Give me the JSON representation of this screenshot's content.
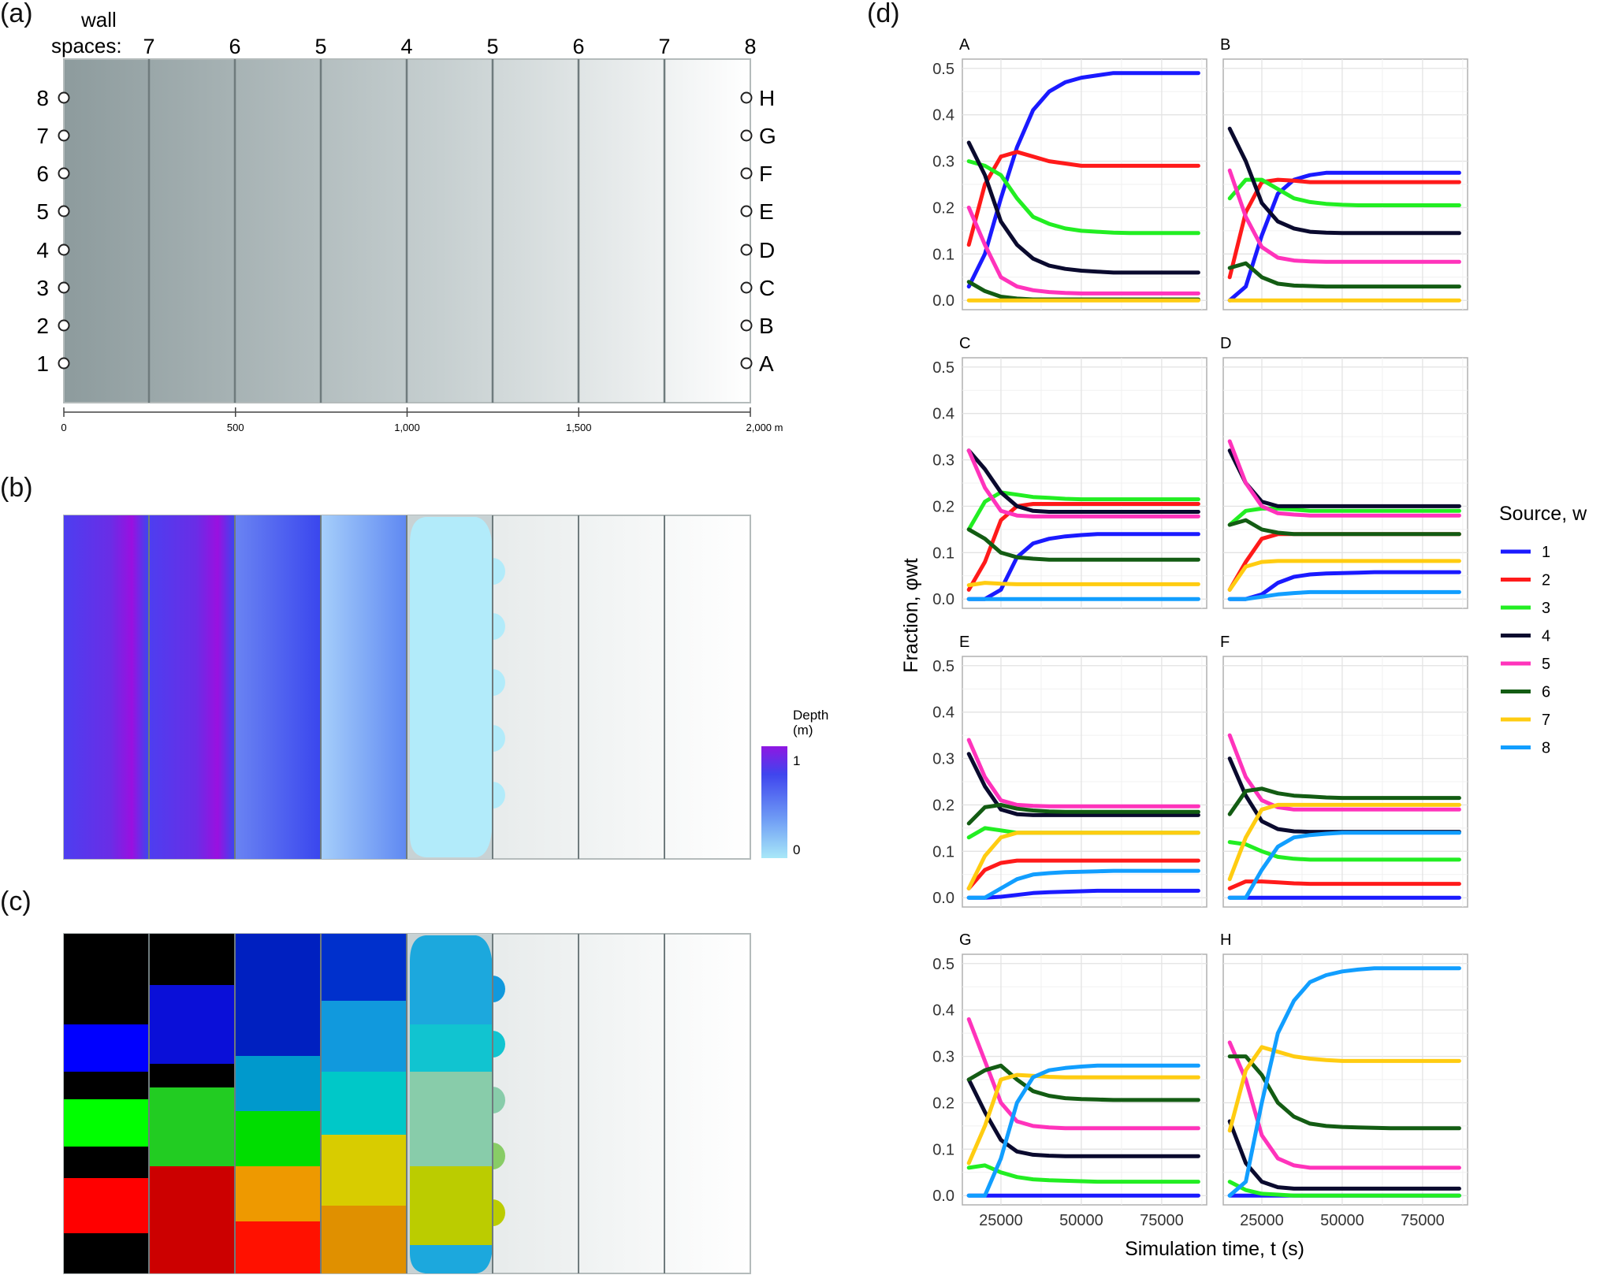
{
  "panel_labels": {
    "a": "(a)",
    "b": "(b)",
    "c": "(c)",
    "d": "(d)"
  },
  "panel_a": {
    "wall_label": "wall",
    "spaces_label": "spaces:",
    "wall_spaces": [
      "7",
      "6",
      "5",
      "4",
      "5",
      "6",
      "7",
      "8"
    ],
    "left_points": [
      "1",
      "2",
      "3",
      "4",
      "5",
      "6",
      "7",
      "8"
    ],
    "right_points": [
      "A",
      "B",
      "C",
      "D",
      "E",
      "F",
      "G",
      "H"
    ],
    "scale_ticks": [
      "0",
      "500",
      "1,000",
      "1,500",
      "2,000 m"
    ]
  },
  "panel_b": {
    "legend_title_1": "Depth",
    "legend_title_2": "(m)",
    "legend_max": "1",
    "legend_min": "0",
    "legend_colors": [
      "#a8e8f8",
      "#6f9cf5",
      "#3f45ee",
      "#8f16e2"
    ]
  },
  "panel_c": {
    "colors": [
      "#000000",
      "#0000ff",
      "#00ff00",
      "#ff0000",
      "#0033cc",
      "#22cc22",
      "#cc0000",
      "#00a0e0",
      "#e0b000",
      "#88ccaa",
      "#bbcc00"
    ]
  },
  "chart_data": {
    "type": "line",
    "panels": [
      "A",
      "B",
      "C",
      "D",
      "E",
      "F",
      "G",
      "H"
    ],
    "xlabel": "Simulation time, t (s)",
    "ylabel": "Fraction, φwt",
    "xlim": [
      13000,
      89000
    ],
    "ylim": [
      -0.02,
      0.52
    ],
    "x_ticks": [
      "25000",
      "50000",
      "75000"
    ],
    "y_ticks": [
      "0.0",
      "0.1",
      "0.2",
      "0.3",
      "0.4",
      "0.5"
    ],
    "grid": true,
    "legend_title": "Source, w",
    "legend_position": "right",
    "series_names": [
      "1",
      "2",
      "3",
      "4",
      "5",
      "6",
      "7",
      "8"
    ],
    "series_colors": [
      "#1a1aff",
      "#ff1a1a",
      "#22ee22",
      "#0a0a2e",
      "#ff33bb",
      "#135c13",
      "#ffcc11",
      "#119eff"
    ],
    "x": [
      15000,
      20000,
      25000,
      30000,
      35000,
      40000,
      45000,
      50000,
      55000,
      60000,
      65000,
      70000,
      75000,
      80000,
      86400
    ],
    "data": {
      "A": [
        [
          0.03,
          0.1,
          0.22,
          0.33,
          0.41,
          0.45,
          0.47,
          0.48,
          0.485,
          0.49,
          0.49,
          0.49,
          0.49,
          0.49,
          0.49
        ],
        [
          0.12,
          0.25,
          0.31,
          0.32,
          0.31,
          0.3,
          0.295,
          0.29,
          0.29,
          0.29,
          0.29,
          0.29,
          0.29,
          0.29,
          0.29
        ],
        [
          0.3,
          0.29,
          0.27,
          0.22,
          0.18,
          0.165,
          0.155,
          0.15,
          0.148,
          0.146,
          0.145,
          0.145,
          0.145,
          0.145,
          0.145
        ],
        [
          0.34,
          0.27,
          0.17,
          0.12,
          0.09,
          0.075,
          0.068,
          0.064,
          0.062,
          0.06,
          0.06,
          0.06,
          0.06,
          0.06,
          0.06
        ],
        [
          0.2,
          0.12,
          0.05,
          0.03,
          0.022,
          0.018,
          0.016,
          0.015,
          0.015,
          0.015,
          0.015,
          0.015,
          0.015,
          0.015,
          0.015
        ],
        [
          0.04,
          0.02,
          0.008,
          0.004,
          0.002,
          0.002,
          0.002,
          0.002,
          0.002,
          0.002,
          0.002,
          0.002,
          0.002,
          0.002,
          0.002
        ],
        [
          0.0,
          0.0,
          0.0,
          0.0,
          0.0,
          0.0,
          0.0,
          0.0,
          0.0,
          0.0,
          0.0,
          0.0,
          0.0,
          0.0,
          0.0
        ],
        null
      ],
      "B": [
        [
          0.0,
          0.03,
          0.14,
          0.23,
          0.26,
          0.27,
          0.275,
          0.275,
          0.275,
          0.275,
          0.275,
          0.275,
          0.275,
          0.275,
          0.275
        ],
        [
          0.05,
          0.19,
          0.255,
          0.26,
          0.258,
          0.255,
          0.255,
          0.255,
          0.255,
          0.255,
          0.255,
          0.255,
          0.255,
          0.255,
          0.255
        ],
        [
          0.22,
          0.26,
          0.26,
          0.24,
          0.22,
          0.212,
          0.208,
          0.206,
          0.205,
          0.205,
          0.205,
          0.205,
          0.205,
          0.205,
          0.205
        ],
        [
          0.37,
          0.3,
          0.21,
          0.17,
          0.155,
          0.148,
          0.146,
          0.145,
          0.145,
          0.145,
          0.145,
          0.145,
          0.145,
          0.145,
          0.145
        ],
        [
          0.28,
          0.18,
          0.115,
          0.092,
          0.086,
          0.084,
          0.083,
          0.083,
          0.083,
          0.083,
          0.083,
          0.083,
          0.083,
          0.083,
          0.083
        ],
        [
          0.07,
          0.08,
          0.05,
          0.036,
          0.032,
          0.031,
          0.03,
          0.03,
          0.03,
          0.03,
          0.03,
          0.03,
          0.03,
          0.03,
          0.03
        ],
        [
          0.0,
          0.0,
          0.0,
          0.0,
          0.0,
          0.0,
          0.0,
          0.0,
          0.0,
          0.0,
          0.0,
          0.0,
          0.0,
          0.0,
          0.0
        ],
        null
      ],
      "C": [
        [
          0.0,
          0.0,
          0.02,
          0.09,
          0.12,
          0.13,
          0.135,
          0.138,
          0.14,
          0.14,
          0.14,
          0.14,
          0.14,
          0.14,
          0.14
        ],
        [
          0.02,
          0.08,
          0.17,
          0.2,
          0.205,
          0.205,
          0.205,
          0.205,
          0.205,
          0.205,
          0.205,
          0.205,
          0.205,
          0.205,
          0.205
        ],
        [
          0.15,
          0.21,
          0.23,
          0.225,
          0.22,
          0.218,
          0.216,
          0.215,
          0.215,
          0.215,
          0.215,
          0.215,
          0.215,
          0.215,
          0.215
        ],
        [
          0.32,
          0.28,
          0.23,
          0.2,
          0.19,
          0.188,
          0.188,
          0.188,
          0.188,
          0.188,
          0.188,
          0.188,
          0.188,
          0.188,
          0.188
        ],
        [
          0.32,
          0.24,
          0.19,
          0.18,
          0.178,
          0.178,
          0.178,
          0.178,
          0.178,
          0.178,
          0.178,
          0.178,
          0.178,
          0.178,
          0.178
        ],
        [
          0.15,
          0.13,
          0.1,
          0.09,
          0.087,
          0.085,
          0.085,
          0.085,
          0.085,
          0.085,
          0.085,
          0.085,
          0.085,
          0.085,
          0.085
        ],
        [
          0.03,
          0.035,
          0.033,
          0.032,
          0.032,
          0.032,
          0.032,
          0.032,
          0.032,
          0.032,
          0.032,
          0.032,
          0.032,
          0.032,
          0.032
        ],
        [
          0.0,
          0.0,
          0.0,
          0.0,
          0.0,
          0.0,
          0.0,
          0.0,
          0.0,
          0.0,
          0.0,
          0.0,
          0.0,
          0.0,
          0.0
        ]
      ],
      "D": [
        [
          0.0,
          0.0,
          0.01,
          0.035,
          0.048,
          0.053,
          0.055,
          0.056,
          0.057,
          0.058,
          0.058,
          0.058,
          0.058,
          0.058,
          0.058
        ],
        [
          0.02,
          0.08,
          0.13,
          0.14,
          0.14,
          0.14,
          0.14,
          0.14,
          0.14,
          0.14,
          0.14,
          0.14,
          0.14,
          0.14,
          0.14
        ],
        [
          0.16,
          0.19,
          0.195,
          0.195,
          0.193,
          0.19,
          0.19,
          0.19,
          0.19,
          0.19,
          0.19,
          0.19,
          0.19,
          0.19,
          0.19
        ],
        [
          0.32,
          0.25,
          0.21,
          0.2,
          0.2,
          0.2,
          0.2,
          0.2,
          0.2,
          0.2,
          0.2,
          0.2,
          0.2,
          0.2,
          0.2
        ],
        [
          0.34,
          0.25,
          0.2,
          0.185,
          0.182,
          0.18,
          0.18,
          0.18,
          0.18,
          0.18,
          0.18,
          0.18,
          0.18,
          0.18,
          0.18
        ],
        [
          0.16,
          0.17,
          0.15,
          0.143,
          0.14,
          0.14,
          0.14,
          0.14,
          0.14,
          0.14,
          0.14,
          0.14,
          0.14,
          0.14,
          0.14
        ],
        [
          0.02,
          0.07,
          0.08,
          0.082,
          0.082,
          0.082,
          0.082,
          0.082,
          0.082,
          0.082,
          0.082,
          0.082,
          0.082,
          0.082,
          0.082
        ],
        [
          0.0,
          0.0,
          0.005,
          0.01,
          0.013,
          0.015,
          0.015,
          0.015,
          0.015,
          0.015,
          0.015,
          0.015,
          0.015,
          0.015,
          0.015
        ]
      ],
      "E": [
        [
          0.0,
          0.0,
          0.002,
          0.006,
          0.01,
          0.012,
          0.013,
          0.014,
          0.015,
          0.015,
          0.015,
          0.015,
          0.015,
          0.015,
          0.015
        ],
        [
          0.02,
          0.06,
          0.075,
          0.08,
          0.08,
          0.08,
          0.08,
          0.08,
          0.08,
          0.08,
          0.08,
          0.08,
          0.08,
          0.08,
          0.08
        ],
        [
          0.13,
          0.15,
          0.145,
          0.14,
          0.14,
          0.14,
          0.14,
          0.14,
          0.14,
          0.14,
          0.14,
          0.14,
          0.14,
          0.14,
          0.14
        ],
        [
          0.31,
          0.24,
          0.19,
          0.18,
          0.178,
          0.178,
          0.178,
          0.178,
          0.178,
          0.178,
          0.178,
          0.178,
          0.178,
          0.178,
          0.178
        ],
        [
          0.34,
          0.26,
          0.21,
          0.2,
          0.198,
          0.197,
          0.197,
          0.197,
          0.197,
          0.197,
          0.197,
          0.197,
          0.197,
          0.197,
          0.197
        ],
        [
          0.16,
          0.195,
          0.2,
          0.192,
          0.188,
          0.186,
          0.185,
          0.185,
          0.185,
          0.185,
          0.185,
          0.185,
          0.185,
          0.185,
          0.185
        ],
        [
          0.02,
          0.09,
          0.13,
          0.14,
          0.14,
          0.14,
          0.14,
          0.14,
          0.14,
          0.14,
          0.14,
          0.14,
          0.14,
          0.14,
          0.14
        ],
        [
          0.0,
          0.0,
          0.02,
          0.04,
          0.05,
          0.053,
          0.055,
          0.056,
          0.057,
          0.058,
          0.058,
          0.058,
          0.058,
          0.058,
          0.058
        ]
      ],
      "F": [
        [
          0.0,
          0.0,
          0.0,
          0.0,
          0.0,
          0.0,
          0.0,
          0.0,
          0.0,
          0.0,
          0.0,
          0.0,
          0.0,
          0.0,
          0.0
        ],
        [
          0.02,
          0.035,
          0.035,
          0.033,
          0.031,
          0.03,
          0.03,
          0.03,
          0.03,
          0.03,
          0.03,
          0.03,
          0.03,
          0.03,
          0.03
        ],
        [
          0.12,
          0.115,
          0.1,
          0.088,
          0.084,
          0.082,
          0.082,
          0.082,
          0.082,
          0.082,
          0.082,
          0.082,
          0.082,
          0.082,
          0.082
        ],
        [
          0.3,
          0.22,
          0.165,
          0.148,
          0.143,
          0.142,
          0.142,
          0.142,
          0.142,
          0.142,
          0.142,
          0.142,
          0.142,
          0.142,
          0.142
        ],
        [
          0.35,
          0.26,
          0.21,
          0.195,
          0.19,
          0.19,
          0.19,
          0.19,
          0.19,
          0.19,
          0.19,
          0.19,
          0.19,
          0.19,
          0.19
        ],
        [
          0.18,
          0.23,
          0.235,
          0.225,
          0.22,
          0.218,
          0.216,
          0.215,
          0.215,
          0.215,
          0.215,
          0.215,
          0.215,
          0.215,
          0.215
        ],
        [
          0.04,
          0.13,
          0.19,
          0.2,
          0.2,
          0.2,
          0.2,
          0.2,
          0.2,
          0.2,
          0.2,
          0.2,
          0.2,
          0.2,
          0.2
        ],
        [
          0.0,
          0.0,
          0.06,
          0.11,
          0.13,
          0.135,
          0.138,
          0.14,
          0.14,
          0.14,
          0.14,
          0.14,
          0.14,
          0.14,
          0.14
        ]
      ],
      "G": [
        [
          0.0,
          0.0,
          0.0,
          0.0,
          0.0,
          0.0,
          0.0,
          0.0,
          0.0,
          0.0,
          0.0,
          0.0,
          0.0,
          0.0,
          0.0
        ],
        null,
        [
          0.06,
          0.065,
          0.05,
          0.04,
          0.035,
          0.033,
          0.032,
          0.031,
          0.03,
          0.03,
          0.03,
          0.03,
          0.03,
          0.03,
          0.03
        ],
        [
          0.25,
          0.18,
          0.12,
          0.095,
          0.088,
          0.086,
          0.085,
          0.085,
          0.085,
          0.085,
          0.085,
          0.085,
          0.085,
          0.085,
          0.085
        ],
        [
          0.38,
          0.29,
          0.2,
          0.16,
          0.15,
          0.147,
          0.145,
          0.145,
          0.145,
          0.145,
          0.145,
          0.145,
          0.145,
          0.145,
          0.145
        ],
        [
          0.25,
          0.27,
          0.28,
          0.25,
          0.225,
          0.215,
          0.21,
          0.208,
          0.207,
          0.206,
          0.206,
          0.206,
          0.206,
          0.206,
          0.206
        ],
        [
          0.07,
          0.15,
          0.25,
          0.26,
          0.258,
          0.256,
          0.255,
          0.255,
          0.255,
          0.255,
          0.255,
          0.255,
          0.255,
          0.255,
          0.255
        ],
        [
          0.0,
          0.0,
          0.08,
          0.2,
          0.255,
          0.27,
          0.275,
          0.278,
          0.28,
          0.28,
          0.28,
          0.28,
          0.28,
          0.28,
          0.28
        ]
      ],
      "H": [
        [
          0.0,
          0.0,
          0.0,
          0.0,
          0.0,
          0.0,
          0.0,
          0.0,
          0.0,
          0.0,
          0.0,
          0.0,
          0.0,
          0.0,
          0.0
        ],
        null,
        [
          0.03,
          0.012,
          0.004,
          0.002,
          0.0,
          0.0,
          0.0,
          0.0,
          0.0,
          0.0,
          0.0,
          0.0,
          0.0,
          0.0,
          0.0
        ],
        [
          0.16,
          0.07,
          0.03,
          0.018,
          0.015,
          0.015,
          0.015,
          0.015,
          0.015,
          0.015,
          0.015,
          0.015,
          0.015,
          0.015,
          0.015
        ],
        [
          0.33,
          0.25,
          0.13,
          0.08,
          0.065,
          0.06,
          0.06,
          0.06,
          0.06,
          0.06,
          0.06,
          0.06,
          0.06,
          0.06,
          0.06
        ],
        [
          0.3,
          0.3,
          0.26,
          0.2,
          0.17,
          0.155,
          0.15,
          0.148,
          0.147,
          0.146,
          0.145,
          0.145,
          0.145,
          0.145,
          0.145
        ],
        [
          0.14,
          0.27,
          0.32,
          0.31,
          0.3,
          0.295,
          0.292,
          0.29,
          0.29,
          0.29,
          0.29,
          0.29,
          0.29,
          0.29,
          0.29
        ],
        [
          0.0,
          0.03,
          0.2,
          0.35,
          0.42,
          0.46,
          0.475,
          0.483,
          0.487,
          0.49,
          0.49,
          0.49,
          0.49,
          0.49,
          0.49
        ]
      ]
    }
  }
}
